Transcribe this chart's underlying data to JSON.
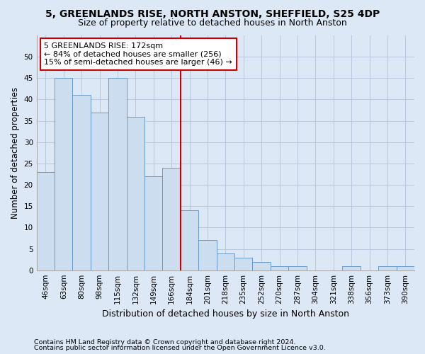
{
  "title1": "5, GREENLANDS RISE, NORTH ANSTON, SHEFFIELD, S25 4DP",
  "title2": "Size of property relative to detached houses in North Anston",
  "xlabel": "Distribution of detached houses by size in North Anston",
  "ylabel": "Number of detached properties",
  "footnote1": "Contains HM Land Registry data © Crown copyright and database right 2024.",
  "footnote2": "Contains public sector information licensed under the Open Government Licence v3.0.",
  "categories": [
    "46sqm",
    "63sqm",
    "80sqm",
    "98sqm",
    "115sqm",
    "132sqm",
    "149sqm",
    "166sqm",
    "184sqm",
    "201sqm",
    "218sqm",
    "235sqm",
    "252sqm",
    "270sqm",
    "287sqm",
    "304sqm",
    "321sqm",
    "338sqm",
    "356sqm",
    "373sqm",
    "390sqm"
  ],
  "values": [
    23,
    45,
    41,
    37,
    45,
    36,
    22,
    24,
    14,
    7,
    4,
    3,
    2,
    1,
    1,
    0,
    0,
    1,
    0,
    1,
    1
  ],
  "bar_color": "#ccddf0",
  "bar_edge_color": "#6699cc",
  "vline_index": 7.5,
  "vline_color": "#cc0000",
  "annotation_line1": "5 GREENLANDS RISE: 172sqm",
  "annotation_line2": "← 84% of detached houses are smaller (256)",
  "annotation_line3": "15% of semi-detached houses are larger (46) →",
  "annotation_box_color": "#ffffff",
  "annotation_box_edge": "#cc0000",
  "ylim": [
    0,
    55
  ],
  "yticks": [
    0,
    5,
    10,
    15,
    20,
    25,
    30,
    35,
    40,
    45,
    50
  ],
  "grid_color": "#b8c8dc",
  "bg_color": "#dce8f5",
  "title1_fontsize": 10,
  "title2_fontsize": 9,
  "ylabel_fontsize": 8.5,
  "xlabel_fontsize": 9,
  "tick_fontsize": 7.5,
  "annotation_fontsize": 8,
  "footnote_fontsize": 6.8
}
